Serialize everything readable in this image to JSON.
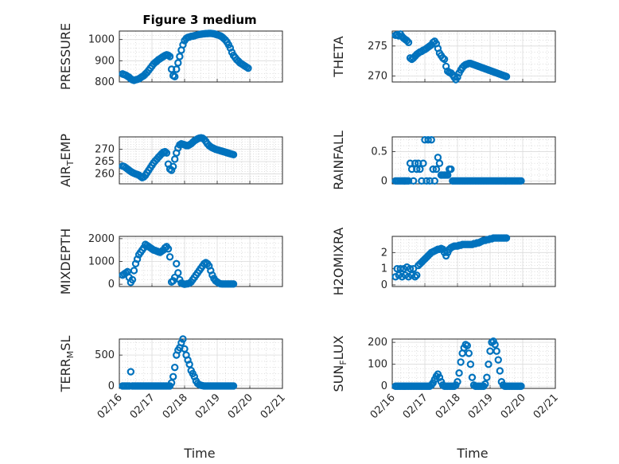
{
  "figure": {
    "title": "Figure 3 medium",
    "xlabel": "Time",
    "x_tick_labels": [
      "02/16",
      "02/17",
      "02/18",
      "02/19",
      "02/20",
      "02/21"
    ],
    "marker_color": "#0072bd",
    "grid": "on",
    "minor_grid": "on"
  },
  "chart_data": [
    {
      "type": "scatter",
      "marker": "circle",
      "ylabel": "PRESSURE",
      "xlim": [
        0,
        5
      ],
      "ylim": [
        800,
        1040
      ],
      "yticks": [
        800,
        900,
        1000
      ],
      "ytick_labels": [
        "800",
        "900",
        "1000"
      ],
      "x": [
        0.1,
        0.15,
        0.2,
        0.25,
        0.3,
        0.35,
        0.4,
        0.45,
        0.5,
        0.55,
        0.6,
        0.65,
        0.7,
        0.75,
        0.8,
        0.85,
        0.9,
        0.95,
        1.0,
        1.05,
        1.1,
        1.15,
        1.2,
        1.25,
        1.3,
        1.35,
        1.4,
        1.45,
        1.5,
        1.55,
        1.6,
        1.65,
        1.7,
        1.75,
        1.8,
        1.85,
        1.9,
        1.95,
        2.0,
        2.05,
        2.1,
        2.15,
        2.2,
        2.25,
        2.3,
        2.35,
        2.4,
        2.45,
        2.5,
        2.55,
        2.6,
        2.65,
        2.7,
        2.75,
        2.8,
        2.85,
        2.9,
        2.95,
        3.0,
        3.05,
        3.1,
        3.15,
        3.2,
        3.25,
        3.3,
        3.35,
        3.4,
        3.45,
        3.5,
        3.55,
        3.6,
        3.65,
        3.7,
        3.75,
        3.8,
        3.85,
        3.9,
        3.95
      ],
      "y": [
        838,
        835,
        832,
        827,
        822,
        815,
        810,
        808,
        810,
        812,
        815,
        820,
        825,
        830,
        838,
        845,
        855,
        865,
        875,
        885,
        892,
        898,
        905,
        910,
        915,
        920,
        925,
        928,
        926,
        920,
        860,
        830,
        825,
        860,
        890,
        920,
        950,
        975,
        995,
        1005,
        1010,
        1012,
        1015,
        1016,
        1018,
        1020,
        1022,
        1024,
        1025,
        1026,
        1027,
        1028,
        1028,
        1029,
        1029,
        1028,
        1027,
        1025,
        1022,
        1020,
        1017,
        1012,
        1005,
        998,
        988,
        975,
        960,
        940,
        925,
        915,
        905,
        898,
        890,
        885,
        880,
        875,
        870,
        865
      ]
    },
    {
      "type": "scatter",
      "marker": "circle",
      "ylabel": "THETA",
      "xlim": [
        0,
        5
      ],
      "ylim": [
        269,
        277.5
      ],
      "yticks": [
        270,
        275
      ],
      "ytick_labels": [
        "270",
        "275"
      ],
      "x": [
        0.1,
        0.15,
        0.2,
        0.25,
        0.3,
        0.35,
        0.4,
        0.45,
        0.5,
        0.55,
        0.6,
        0.65,
        0.7,
        0.75,
        0.8,
        0.85,
        0.9,
        0.95,
        1.0,
        1.05,
        1.1,
        1.15,
        1.2,
        1.25,
        1.3,
        1.35,
        1.4,
        1.45,
        1.5,
        1.55,
        1.6,
        1.65,
        1.7,
        1.75,
        1.8,
        1.85,
        1.9,
        1.95,
        2.0,
        2.05,
        2.1,
        2.15,
        2.2,
        2.25,
        2.3,
        2.35,
        2.4,
        2.45,
        2.5,
        2.55,
        2.6,
        2.65,
        2.7,
        2.75,
        2.8,
        2.85,
        2.9,
        2.95,
        3.0,
        3.05,
        3.1,
        3.15,
        3.2,
        3.25,
        3.3,
        3.35,
        3.4,
        3.45,
        3.5
      ],
      "y": [
        276.8,
        276.9,
        276.7,
        277.0,
        276.6,
        276.3,
        276.1,
        275.9,
        275.6,
        273.0,
        272.8,
        273.0,
        273.3,
        273.6,
        273.8,
        274.0,
        274.1,
        274.3,
        274.4,
        274.6,
        274.8,
        275.0,
        275.2,
        275.6,
        275.8,
        275.4,
        274.6,
        273.8,
        273.4,
        273.0,
        272.8,
        271.6,
        270.8,
        270.6,
        270.5,
        270.2,
        269.8,
        269.4,
        269.8,
        270.5,
        271.0,
        271.4,
        271.7,
        271.9,
        272.0,
        272.1,
        272.1,
        272.0,
        271.9,
        271.8,
        271.7,
        271.6,
        271.5,
        271.4,
        271.3,
        271.2,
        271.1,
        271.0,
        270.9,
        270.8,
        270.7,
        270.6,
        270.5,
        270.4,
        270.3,
        270.2,
        270.1,
        270.0,
        269.9
      ]
    },
    {
      "type": "scatter",
      "marker": "circle",
      "ylabel": "AIR_TEMP",
      "xlim": [
        0,
        5
      ],
      "ylim": [
        256,
        275
      ],
      "yticks": [
        260,
        265,
        270
      ],
      "ytick_labels": [
        "260",
        "265",
        "270"
      ],
      "x": [
        0.1,
        0.15,
        0.2,
        0.25,
        0.3,
        0.35,
        0.4,
        0.45,
        0.5,
        0.55,
        0.6,
        0.65,
        0.7,
        0.75,
        0.8,
        0.85,
        0.9,
        0.95,
        1.0,
        1.05,
        1.1,
        1.15,
        1.2,
        1.25,
        1.3,
        1.35,
        1.4,
        1.45,
        1.5,
        1.55,
        1.6,
        1.65,
        1.7,
        1.75,
        1.8,
        1.85,
        1.9,
        1.95,
        2.0,
        2.05,
        2.1,
        2.15,
        2.2,
        2.25,
        2.3,
        2.35,
        2.4,
        2.45,
        2.5,
        2.55,
        2.6,
        2.65,
        2.7,
        2.75,
        2.8,
        2.85,
        2.9,
        2.95,
        3.0,
        3.05,
        3.1,
        3.15,
        3.2,
        3.25,
        3.3,
        3.35,
        3.4,
        3.45,
        3.5
      ],
      "y": [
        263.2,
        263.0,
        262.5,
        262.0,
        261.5,
        261.0,
        260.6,
        260.3,
        260.0,
        259.8,
        259.5,
        259.0,
        258.5,
        258.8,
        259.5,
        260.5,
        261.5,
        262.5,
        263.5,
        264.5,
        265.3,
        266.0,
        266.8,
        267.5,
        268.2,
        268.8,
        269.0,
        268.5,
        264.0,
        262.0,
        261.5,
        263.0,
        266.0,
        268.5,
        270.5,
        271.8,
        272.2,
        272.0,
        271.8,
        271.5,
        271.5,
        271.8,
        272.2,
        272.8,
        273.4,
        273.8,
        274.2,
        274.5,
        274.6,
        274.5,
        274.0,
        273.2,
        272.2,
        271.5,
        271.0,
        270.6,
        270.3,
        270.0,
        269.8,
        269.6,
        269.4,
        269.2,
        269.0,
        268.8,
        268.6,
        268.4,
        268.2,
        268.0,
        267.8
      ]
    },
    {
      "type": "scatter",
      "marker": "circle",
      "ylabel": "RAINFALL",
      "xlim": [
        0,
        5
      ],
      "ylim": [
        -0.05,
        0.75
      ],
      "yticks": [
        0,
        0.5
      ],
      "ytick_labels": [
        "0",
        "0.5"
      ],
      "x": [
        0.1,
        0.15,
        0.2,
        0.25,
        0.3,
        0.35,
        0.4,
        0.45,
        0.5,
        0.55,
        0.6,
        0.65,
        0.7,
        0.75,
        0.8,
        0.85,
        0.9,
        0.95,
        1.0,
        1.05,
        1.1,
        1.15,
        1.2,
        1.25,
        1.3,
        1.35,
        1.4,
        1.45,
        1.5,
        1.55,
        1.6,
        1.65,
        1.7,
        1.75,
        1.8,
        1.85,
        1.9,
        1.95,
        2.0,
        2.05,
        2.1,
        2.15,
        2.2,
        2.25,
        2.3,
        2.35,
        2.4,
        2.45,
        2.5,
        2.55,
        2.6,
        2.65,
        2.7,
        2.75,
        2.8,
        2.85,
        2.9,
        2.95,
        3.0,
        3.05,
        3.1,
        3.15,
        3.2,
        3.25,
        3.3,
        3.35,
        3.4,
        3.45,
        3.5,
        3.55,
        3.6,
        3.65,
        3.7,
        3.75,
        3.8,
        3.85,
        3.9,
        3.95
      ],
      "y": [
        0,
        0,
        0,
        0,
        0,
        0,
        0,
        0,
        0,
        0.3,
        0.2,
        0,
        0.3,
        0.2,
        0.3,
        0.2,
        0,
        0.3,
        0.7,
        0,
        0.7,
        0,
        0.7,
        0.2,
        0,
        0.2,
        0.4,
        0.3,
        0.1,
        0.1,
        0.1,
        0.1,
        0.1,
        0.2,
        0.2,
        0,
        0,
        0,
        0,
        0,
        0,
        0,
        0,
        0,
        0,
        0,
        0,
        0,
        0,
        0,
        0,
        0,
        0,
        0,
        0,
        0,
        0,
        0,
        0,
        0,
        0,
        0,
        0,
        0,
        0,
        0,
        0,
        0,
        0,
        0,
        0,
        0,
        0,
        0,
        0,
        0,
        0,
        0
      ]
    },
    {
      "type": "scatter",
      "marker": "circle",
      "ylabel": "MIXDEPTH",
      "xlim": [
        0,
        5
      ],
      "ylim": [
        -100,
        2100
      ],
      "yticks": [
        0,
        1000,
        2000
      ],
      "ytick_labels": [
        "0",
        "1000",
        "2000"
      ],
      "x": [
        0.1,
        0.15,
        0.2,
        0.25,
        0.3,
        0.35,
        0.4,
        0.45,
        0.5,
        0.55,
        0.6,
        0.65,
        0.7,
        0.75,
        0.8,
        0.85,
        0.9,
        0.95,
        1.0,
        1.05,
        1.1,
        1.15,
        1.2,
        1.25,
        1.3,
        1.35,
        1.4,
        1.45,
        1.5,
        1.55,
        1.6,
        1.65,
        1.7,
        1.75,
        1.8,
        1.85,
        1.9,
        1.95,
        2.0,
        2.05,
        2.1,
        2.15,
        2.2,
        2.25,
        2.3,
        2.35,
        2.4,
        2.45,
        2.5,
        2.55,
        2.6,
        2.65,
        2.7,
        2.75,
        2.8,
        2.85,
        2.9,
        2.95,
        3.0,
        3.05,
        3.1,
        3.15,
        3.2,
        3.25,
        3.3,
        3.35,
        3.4,
        3.45,
        3.5
      ],
      "y": [
        400,
        450,
        500,
        550,
        300,
        80,
        200,
        600,
        900,
        1100,
        1300,
        1400,
        1500,
        1600,
        1750,
        1700,
        1650,
        1600,
        1550,
        1500,
        1480,
        1450,
        1420,
        1400,
        1450,
        1500,
        1600,
        1650,
        1550,
        1200,
        100,
        150,
        300,
        900,
        500,
        200,
        50,
        20,
        0,
        10,
        20,
        50,
        100,
        200,
        300,
        400,
        500,
        600,
        700,
        800,
        900,
        950,
        900,
        800,
        600,
        400,
        250,
        150,
        100,
        50,
        20,
        10,
        10,
        10,
        10,
        10,
        10,
        10,
        10
      ]
    },
    {
      "type": "scatter",
      "marker": "circle",
      "ylabel": "H2OMIXRA",
      "xlim": [
        0,
        5
      ],
      "ylim": [
        -0.1,
        3
      ],
      "yticks": [
        0,
        1,
        2
      ],
      "ytick_labels": [
        "0",
        "1",
        "2"
      ],
      "x": [
        0.1,
        0.15,
        0.2,
        0.25,
        0.3,
        0.35,
        0.4,
        0.45,
        0.5,
        0.55,
        0.6,
        0.65,
        0.7,
        0.75,
        0.8,
        0.85,
        0.9,
        0.95,
        1.0,
        1.05,
        1.1,
        1.15,
        1.2,
        1.25,
        1.3,
        1.35,
        1.4,
        1.45,
        1.5,
        1.55,
        1.6,
        1.65,
        1.7,
        1.75,
        1.8,
        1.85,
        1.9,
        1.95,
        2.0,
        2.05,
        2.1,
        2.15,
        2.2,
        2.25,
        2.3,
        2.35,
        2.4,
        2.45,
        2.5,
        2.55,
        2.6,
        2.65,
        2.7,
        2.75,
        2.8,
        2.85,
        2.9,
        2.95,
        3.0,
        3.05,
        3.1,
        3.15,
        3.2,
        3.25,
        3.3,
        3.35,
        3.4,
        3.45,
        3.5
      ],
      "y": [
        0.5,
        1.0,
        0.6,
        1.0,
        0.5,
        1.0,
        0.6,
        1.1,
        0.5,
        1.0,
        0.6,
        1.0,
        0.5,
        0.6,
        1.2,
        1.3,
        1.4,
        1.5,
        1.6,
        1.7,
        1.8,
        1.9,
        2.0,
        2.05,
        2.1,
        2.15,
        2.2,
        2.2,
        2.25,
        2.2,
        2.0,
        1.8,
        2.0,
        2.2,
        2.3,
        2.35,
        2.4,
        2.4,
        2.4,
        2.45,
        2.45,
        2.5,
        2.5,
        2.5,
        2.5,
        2.5,
        2.5,
        2.5,
        2.55,
        2.55,
        2.6,
        2.6,
        2.65,
        2.7,
        2.75,
        2.75,
        2.8,
        2.8,
        2.85,
        2.85,
        2.9,
        2.9,
        2.9,
        2.9,
        2.9,
        2.9,
        2.9,
        2.9,
        2.9
      ]
    },
    {
      "type": "scatter",
      "marker": "circle",
      "ylabel": "TERR_MSL",
      "xlim": [
        0,
        5
      ],
      "ylim": [
        -40,
        760
      ],
      "yticks": [
        0,
        500
      ],
      "ytick_labels": [
        "0",
        "500"
      ],
      "x": [
        0.1,
        0.15,
        0.2,
        0.25,
        0.3,
        0.35,
        0.4,
        0.45,
        0.5,
        0.55,
        0.6,
        0.65,
        0.7,
        0.75,
        0.8,
        0.85,
        0.9,
        0.95,
        1.0,
        1.05,
        1.1,
        1.15,
        1.2,
        1.25,
        1.3,
        1.35,
        1.4,
        1.45,
        1.5,
        1.55,
        1.6,
        1.65,
        1.7,
        1.75,
        1.8,
        1.85,
        1.9,
        1.95,
        2.0,
        2.05,
        2.1,
        2.15,
        2.2,
        2.25,
        2.3,
        2.35,
        2.4,
        2.45,
        2.5,
        2.55,
        2.6,
        2.65,
        2.7,
        2.75,
        2.8,
        2.85,
        2.9,
        2.95,
        3.0,
        3.05,
        3.1,
        3.15,
        3.2,
        3.25,
        3.3,
        3.35,
        3.4,
        3.45,
        3.5
      ],
      "y": [
        0,
        0,
        0,
        0,
        0,
        230,
        0,
        0,
        0,
        0,
        0,
        0,
        0,
        0,
        0,
        0,
        0,
        0,
        0,
        0,
        0,
        0,
        0,
        0,
        0,
        0,
        0,
        0,
        0,
        0,
        50,
        150,
        300,
        500,
        580,
        620,
        700,
        760,
        600,
        500,
        420,
        350,
        250,
        200,
        150,
        80,
        40,
        20,
        10,
        5,
        0,
        0,
        0,
        0,
        0,
        0,
        0,
        0,
        0,
        0,
        0,
        0,
        0,
        0,
        0,
        0,
        0,
        0,
        0
      ]
    },
    {
      "type": "scatter",
      "marker": "circle",
      "ylabel": "SUN_FLUX",
      "xlim": [
        0,
        5
      ],
      "ylim": [
        -10,
        215
      ],
      "yticks": [
        0,
        100,
        200
      ],
      "ytick_labels": [
        "0",
        "100",
        "200"
      ],
      "x": [
        0.1,
        0.15,
        0.2,
        0.25,
        0.3,
        0.35,
        0.4,
        0.45,
        0.5,
        0.55,
        0.6,
        0.65,
        0.7,
        0.75,
        0.8,
        0.85,
        0.9,
        0.95,
        1.0,
        1.05,
        1.1,
        1.15,
        1.2,
        1.25,
        1.3,
        1.35,
        1.4,
        1.45,
        1.5,
        1.55,
        1.6,
        1.65,
        1.7,
        1.75,
        1.8,
        1.85,
        1.9,
        1.95,
        2.0,
        2.05,
        2.1,
        2.15,
        2.2,
        2.25,
        2.3,
        2.35,
        2.4,
        2.45,
        2.5,
        2.55,
        2.6,
        2.65,
        2.7,
        2.75,
        2.8,
        2.85,
        2.9,
        2.95,
        3.0,
        3.05,
        3.1,
        3.15,
        3.2,
        3.25,
        3.3,
        3.35,
        3.4,
        3.45,
        3.5,
        3.55,
        3.6,
        3.65,
        3.7,
        3.75,
        3.8,
        3.85,
        3.9,
        3.95
      ],
      "y": [
        0,
        0,
        0,
        0,
        0,
        0,
        0,
        0,
        0,
        0,
        0,
        0,
        0,
        0,
        0,
        0,
        0,
        0,
        0,
        0,
        0,
        0,
        5,
        15,
        30,
        45,
        55,
        40,
        20,
        5,
        0,
        0,
        0,
        0,
        0,
        0,
        0,
        5,
        20,
        60,
        110,
        150,
        175,
        190,
        185,
        150,
        100,
        40,
        5,
        0,
        0,
        0,
        0,
        0,
        0,
        10,
        40,
        100,
        160,
        200,
        205,
        190,
        160,
        120,
        70,
        20,
        5,
        0,
        0,
        0,
        0,
        0,
        0,
        0,
        0,
        0,
        0,
        0
      ]
    }
  ]
}
